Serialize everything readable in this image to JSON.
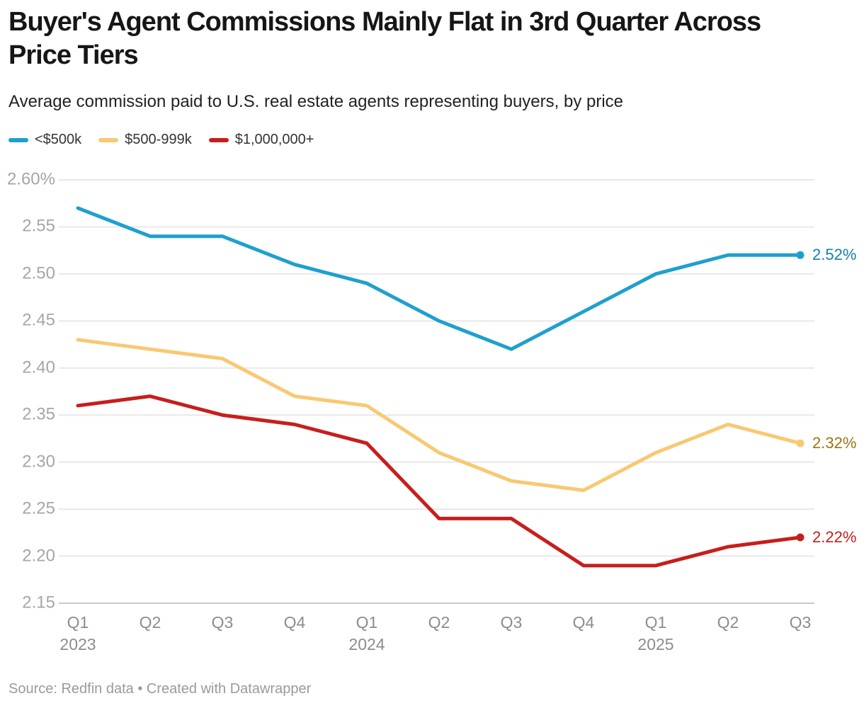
{
  "chart_data": {
    "type": "line",
    "title": "Buyer's Agent Commissions Mainly Flat in 3rd Quarter Across Price Tiers",
    "subtitle": "Average commission paid to U.S. real estate agents representing buyers, by price",
    "source_note": "Source: Redfin data • Created with Datawrapper",
    "unit": "%",
    "grid": true,
    "legend_position": "top",
    "ylim": [
      2.15,
      2.6
    ],
    "x_categories": [
      "Q1",
      "Q2",
      "Q3",
      "Q4",
      "Q1",
      "Q2",
      "Q3",
      "Q4",
      "Q1",
      "Q2",
      "Q3"
    ],
    "x_year_labels": [
      {
        "at": 0,
        "label": "2023"
      },
      {
        "at": 4,
        "label": "2024"
      },
      {
        "at": 8,
        "label": "2025"
      }
    ],
    "y_ticks": [
      {
        "value": 2.6,
        "label": "2.60%"
      },
      {
        "value": 2.55,
        "label": "2.55"
      },
      {
        "value": 2.5,
        "label": "2.50"
      },
      {
        "value": 2.45,
        "label": "2.45"
      },
      {
        "value": 2.4,
        "label": "2.40"
      },
      {
        "value": 2.35,
        "label": "2.35"
      },
      {
        "value": 2.3,
        "label": "2.30"
      },
      {
        "value": 2.25,
        "label": "2.25"
      },
      {
        "value": 2.2,
        "label": "2.20"
      },
      {
        "value": 2.15,
        "label": "2.15"
      }
    ],
    "series": [
      {
        "name": "<$500k",
        "color": "#1EA0CE",
        "label_color": "#1780A9",
        "end_label": "2.52%",
        "values": [
          2.57,
          2.54,
          2.54,
          2.51,
          2.49,
          2.45,
          2.42,
          2.46,
          2.5,
          2.52,
          2.52
        ]
      },
      {
        "name": "$500-999k",
        "color": "#F9C872",
        "label_color": "#9C7414",
        "end_label": "2.32%",
        "values": [
          2.43,
          2.42,
          2.41,
          2.37,
          2.36,
          2.31,
          2.28,
          2.27,
          2.31,
          2.34,
          2.32
        ]
      },
      {
        "name": "$1,000,000+",
        "color": "#C71E1D",
        "label_color": "#C71E1D",
        "end_label": "2.22%",
        "values": [
          2.36,
          2.37,
          2.35,
          2.34,
          2.32,
          2.24,
          2.24,
          2.19,
          2.19,
          2.21,
          2.22
        ]
      }
    ]
  }
}
